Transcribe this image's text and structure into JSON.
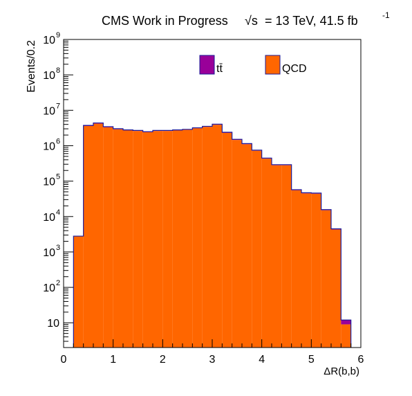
{
  "header": {
    "title_main": "CMS Work in Progress",
    "title_sqrt": "√s",
    "title_energy": "= 13 TeV, 41.5 fb",
    "title_sup": "-1"
  },
  "axes": {
    "xlabel": "ΔR(b,b)",
    "ylabel": "Events/0.2"
  },
  "legend": {
    "items": [
      {
        "label": "tt̄",
        "color": "#990099"
      },
      {
        "label": "QCD",
        "color": "#ff6600"
      }
    ]
  },
  "colors": {
    "ttbar": "#990099",
    "qcd": "#ff6600",
    "stack_outline": "#1a1a99"
  },
  "chart_data": {
    "type": "bar",
    "stacked": true,
    "xlim": [
      0,
      6
    ],
    "ylim": [
      2,
      1000000000
    ],
    "log_y": true,
    "bin_width": 0.2,
    "x_ticks": [
      "0",
      "1",
      "2",
      "3",
      "4",
      "5",
      "6"
    ],
    "y_ticks": [
      {
        "value": 10,
        "base": "10",
        "exp": ""
      },
      {
        "value": 100,
        "base": "10",
        "exp": "2"
      },
      {
        "value": 1000,
        "base": "10",
        "exp": "3"
      },
      {
        "value": 10000,
        "base": "10",
        "exp": "4"
      },
      {
        "value": 100000,
        "base": "10",
        "exp": "5"
      },
      {
        "value": 1000000,
        "base": "10",
        "exp": "6"
      },
      {
        "value": 10000000,
        "base": "10",
        "exp": "7"
      },
      {
        "value": 100000000,
        "base": "10",
        "exp": "8"
      },
      {
        "value": 1000000000,
        "base": "10",
        "exp": "9"
      }
    ],
    "bins_low": [
      0.2,
      0.4,
      0.6,
      0.8,
      1.0,
      1.2,
      1.4,
      1.6,
      1.8,
      2.0,
      2.2,
      2.4,
      2.6,
      2.8,
      3.0,
      3.2,
      3.4,
      3.6,
      3.8,
      4.0,
      4.2,
      4.4,
      4.6,
      4.8,
      5.0,
      5.2,
      5.4,
      5.6
    ],
    "series": [
      {
        "name": "QCD",
        "values": [
          2800,
          3600000,
          4200000,
          3300000,
          2900000,
          2700000,
          2600000,
          2400000,
          2600000,
          2600000,
          2700000,
          2800000,
          3100000,
          3400000,
          3900000,
          2300000,
          1450000,
          1100000,
          720000,
          430000,
          280000,
          280000,
          55000,
          45000,
          44000,
          15000,
          4300,
          9
        ]
      },
      {
        "name": "tt̄",
        "values": [
          0,
          150000,
          200000,
          150000,
          120000,
          100000,
          100000,
          90000,
          100000,
          100000,
          100000,
          100000,
          110000,
          130000,
          160000,
          100000,
          70000,
          50000,
          30000,
          18000,
          12000,
          12000,
          2500,
          2000,
          2000,
          700,
          200,
          3
        ]
      }
    ]
  }
}
